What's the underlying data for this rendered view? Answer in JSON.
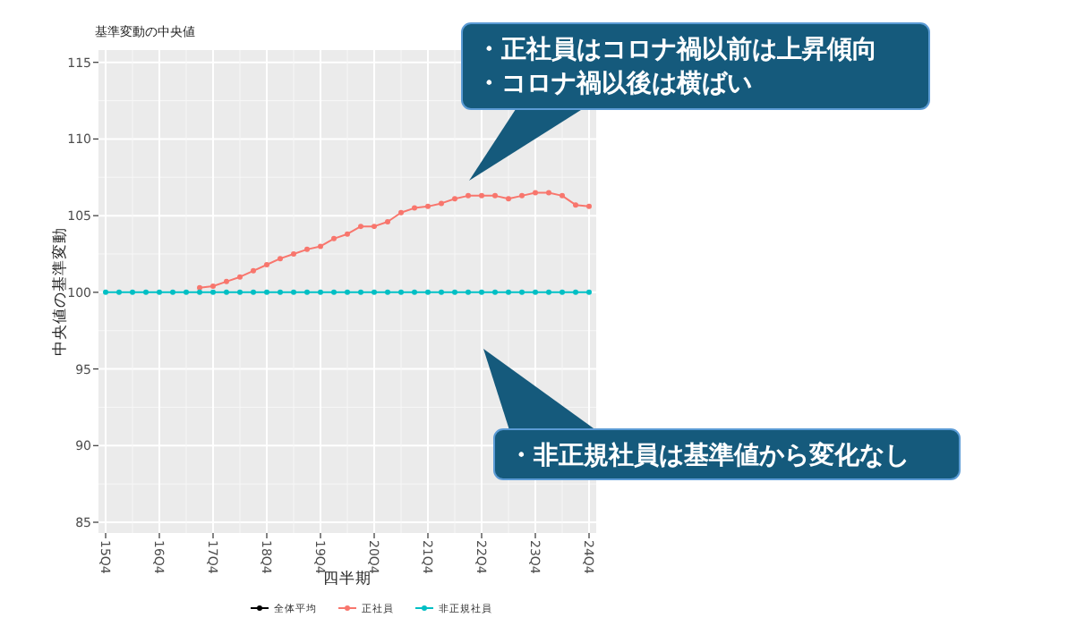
{
  "chart_data": {
    "type": "line",
    "title": "基準変動の中央値",
    "xlabel": "四半期",
    "ylabel": "中央値の基準変動",
    "categories": [
      "15Q4",
      null,
      null,
      null,
      "16Q4",
      null,
      null,
      null,
      "17Q4",
      null,
      null,
      null,
      "18Q4",
      null,
      null,
      null,
      "19Q4",
      null,
      null,
      null,
      "20Q4",
      null,
      null,
      null,
      "21Q4",
      null,
      null,
      null,
      "22Q4",
      null,
      null,
      null,
      "23Q4",
      null,
      null,
      null,
      "24Q4"
    ],
    "series": [
      {
        "name": "全体平均",
        "color": "#000000",
        "values": [
          null,
          null,
          null,
          null,
          null,
          null,
          null,
          null,
          null,
          null,
          null,
          null,
          null,
          null,
          null,
          null,
          null,
          null,
          null,
          null,
          null,
          null,
          null,
          null,
          null,
          null,
          null,
          null,
          null,
          null,
          null,
          null,
          null,
          null,
          null,
          null,
          null
        ]
      },
      {
        "name": "正社員",
        "color": "#f8766d",
        "values": [
          null,
          null,
          null,
          null,
          null,
          null,
          null,
          100.3,
          100.4,
          100.7,
          101.0,
          101.4,
          101.8,
          102.2,
          102.5,
          102.8,
          103.0,
          103.5,
          103.8,
          104.3,
          104.3,
          104.6,
          105.2,
          105.5,
          105.6,
          105.8,
          106.1,
          106.3,
          106.3,
          106.3,
          106.1,
          106.3,
          106.5,
          106.5,
          106.3,
          105.7,
          105.6
        ]
      },
      {
        "name": "非正規社員",
        "color": "#00bfc4",
        "values": [
          100,
          100,
          100,
          100,
          100,
          100,
          100,
          100,
          100,
          100,
          100,
          100,
          100,
          100,
          100,
          100,
          100,
          100,
          100,
          100,
          100,
          100,
          100,
          100,
          100,
          100,
          100,
          100,
          100,
          100,
          100,
          100,
          100,
          100,
          100,
          100,
          100
        ]
      }
    ],
    "ylim": [
      84.3,
      115.8
    ],
    "yticks": [
      85,
      90,
      95,
      100,
      105,
      110,
      115
    ],
    "grid": true,
    "legend": "bottom",
    "marker": "circle",
    "annotations": [
      "・正社員はコロナ禍以前は上昇傾向",
      "・コロナ禍以後は横ばい",
      "・非正規社員は基準値から変化なし"
    ]
  }
}
